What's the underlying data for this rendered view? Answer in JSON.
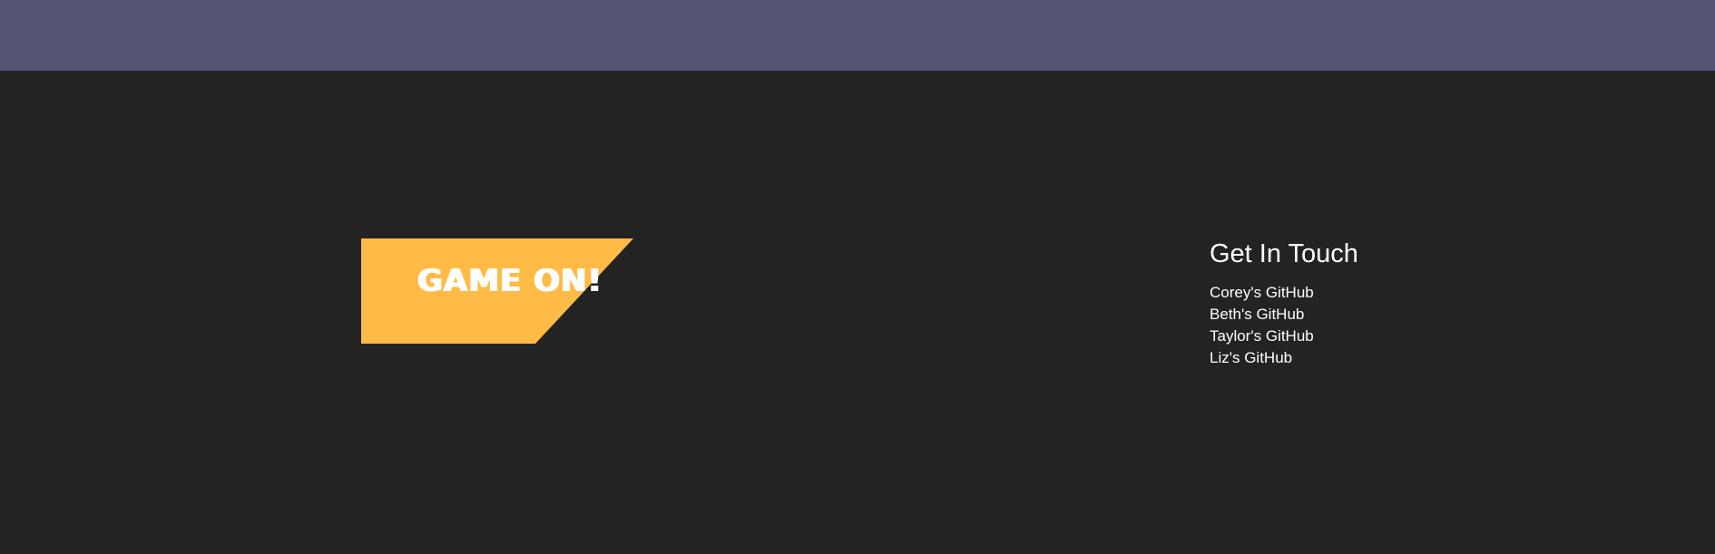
{
  "colors": {
    "header_bg": "#535474",
    "footer_bg": "#232323",
    "banner_bg": "#ffbb45",
    "text": "#ffffff"
  },
  "logo": {
    "text": "GAME ON!"
  },
  "contact": {
    "heading": "Get In Touch",
    "links": [
      {
        "label": "Corey's GitHub"
      },
      {
        "label": "Beth's GitHub"
      },
      {
        "label": "Taylor's GitHub"
      },
      {
        "label": "Liz's GitHub"
      }
    ]
  }
}
